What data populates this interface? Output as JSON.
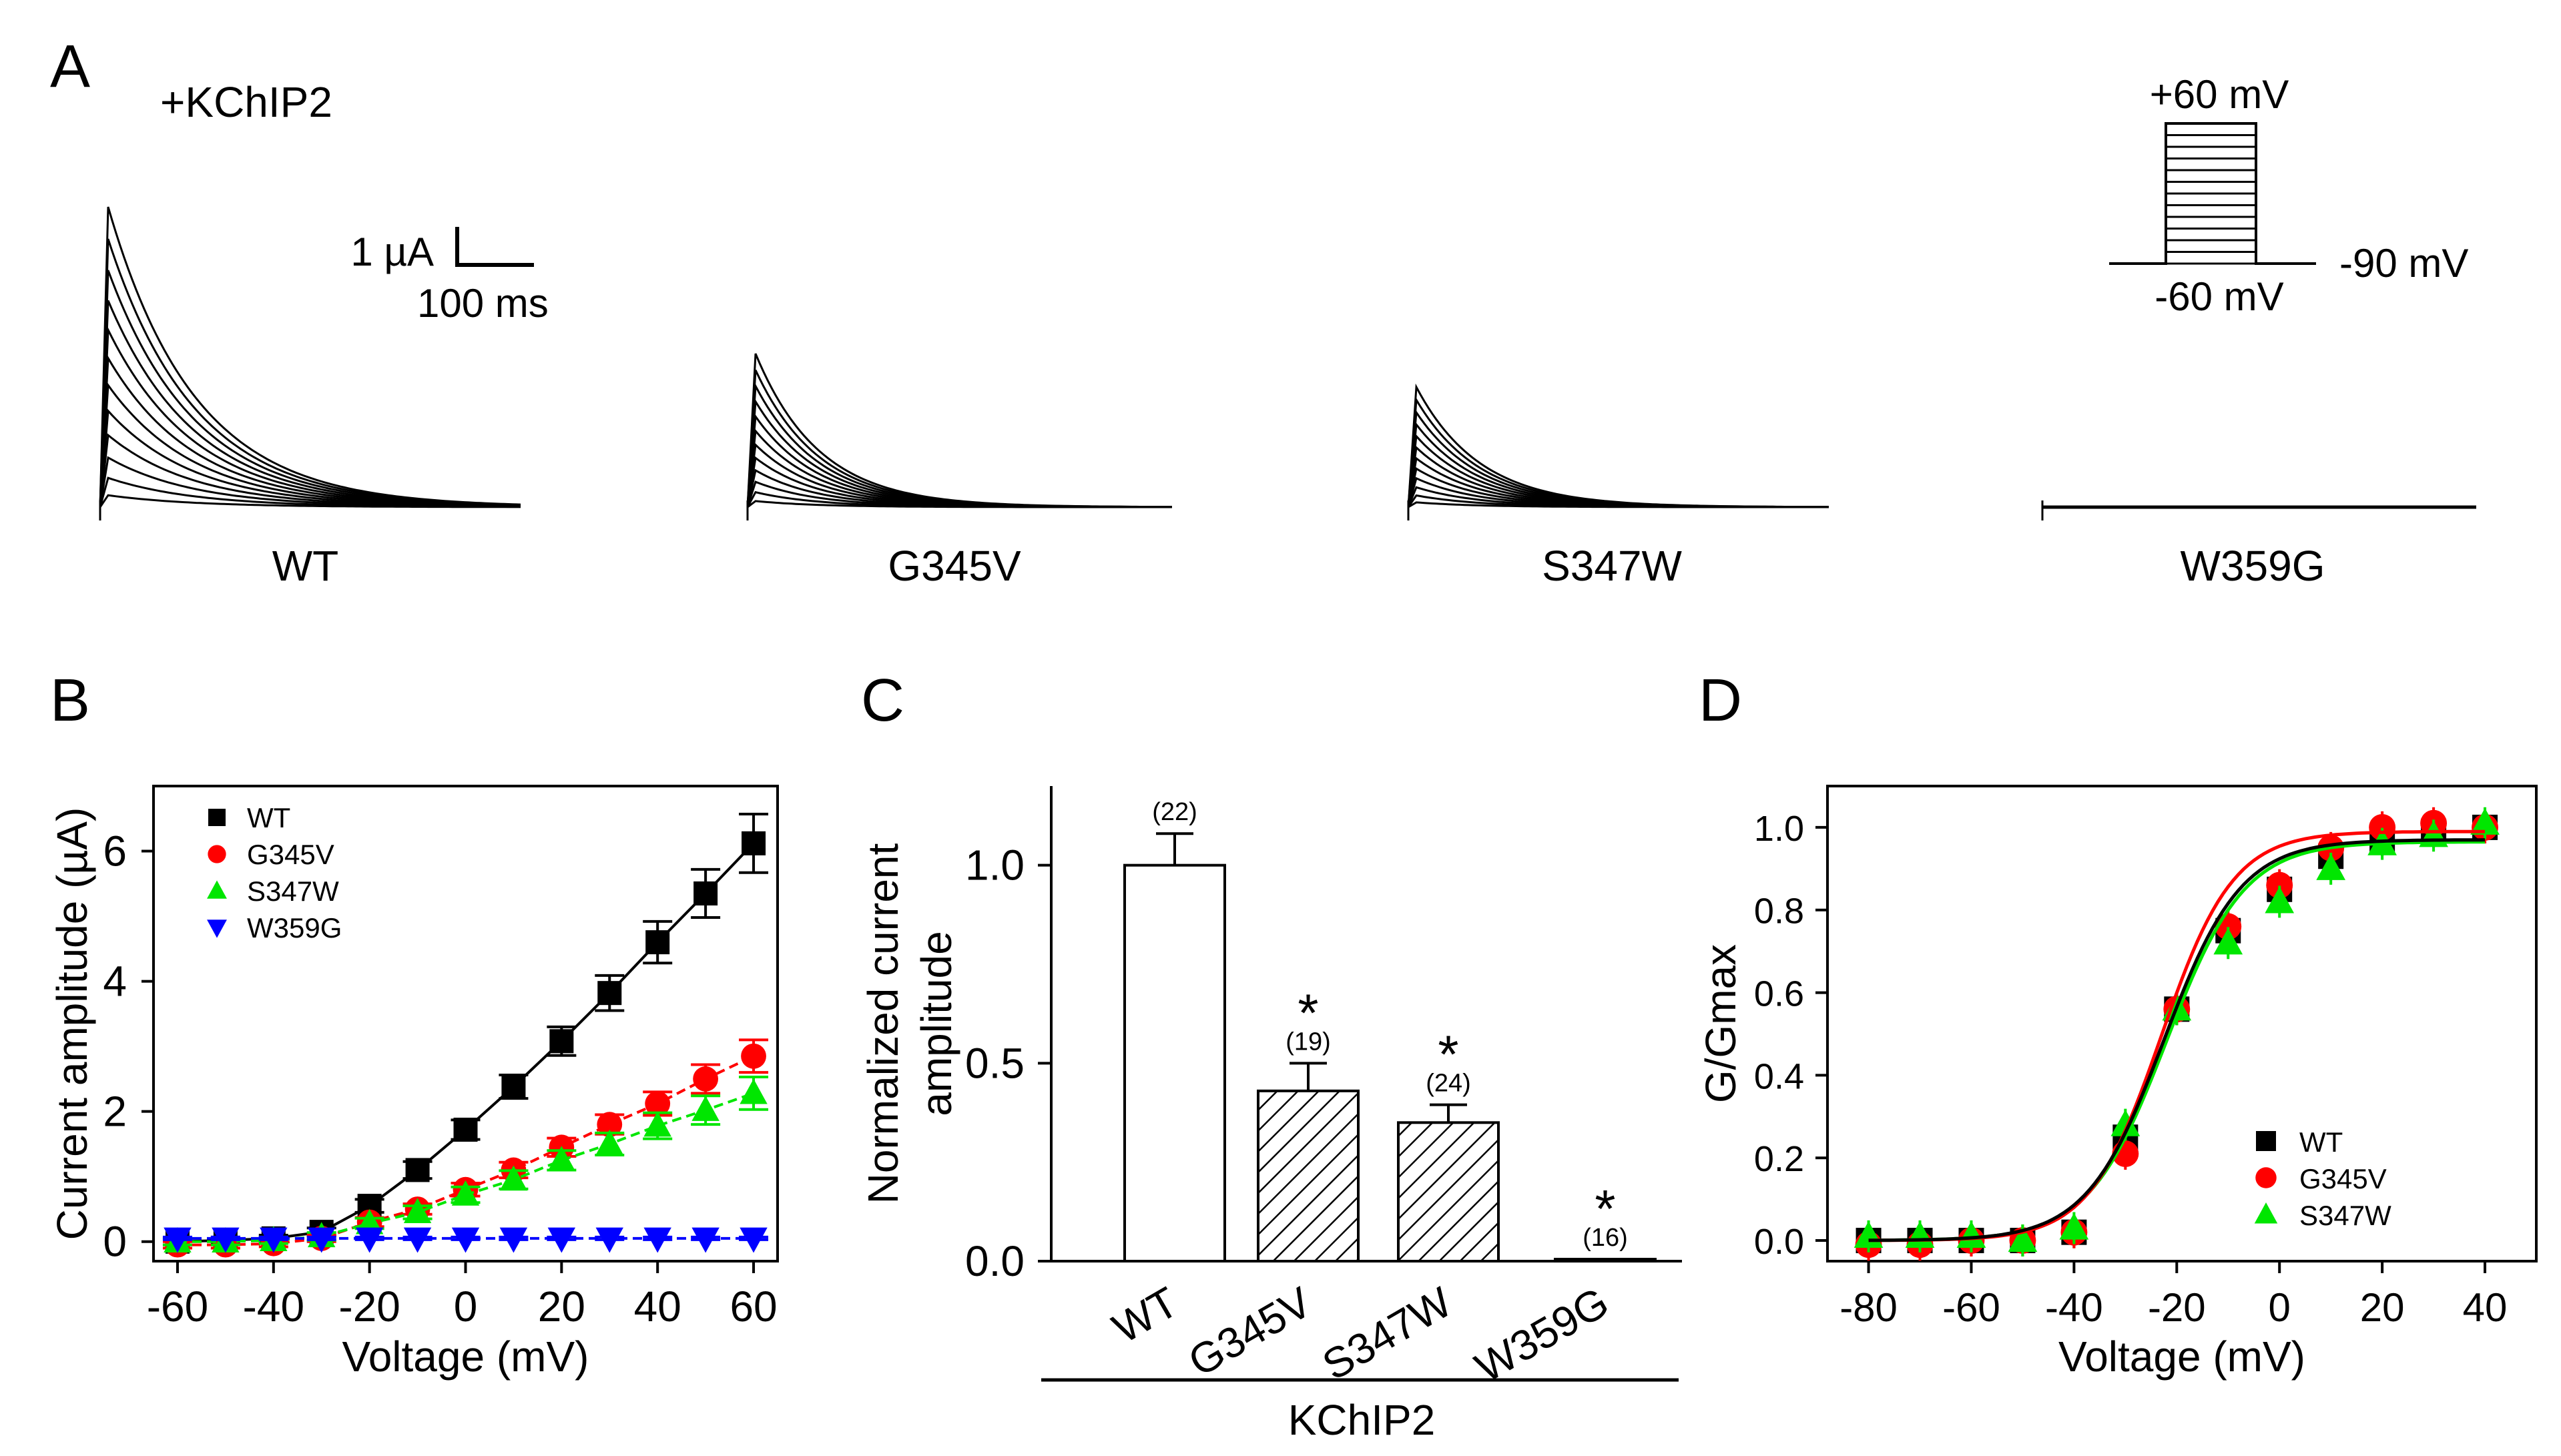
{
  "panel_letters": {
    "a": "A",
    "b": "B",
    "c": "C",
    "d": "D"
  },
  "panel_a": {
    "condition_label": "+KChIP2",
    "scale_bar": {
      "current": "1 µA",
      "time": "100 ms"
    },
    "protocol": {
      "top": "+60 mV",
      "bottom": "-60 mV",
      "holding": "-90 mV",
      "steps": 13
    },
    "traces": [
      {
        "name": "WT",
        "peak_uA": 4.5
      },
      {
        "name": "G345V",
        "peak_uA": 2.3
      },
      {
        "name": "S347W",
        "peak_uA": 1.8
      },
      {
        "name": "W359G",
        "peak_uA": 0.0
      }
    ]
  },
  "colors": {
    "WT": "#000000",
    "G345V": "#ff0000",
    "S347W": "#00e600",
    "W359G": "#0000ff"
  },
  "chart_data": [
    {
      "type": "scatter",
      "panel": "B",
      "title": "",
      "xlabel": "Voltage (mV)",
      "ylabel": "Current amplitude (µA)",
      "xlim": [
        -65,
        65
      ],
      "ylim": [
        -0.3,
        7
      ],
      "xticks": [
        -60,
        -40,
        -20,
        0,
        20,
        40,
        60
      ],
      "yticks": [
        0,
        2,
        4,
        6
      ],
      "legend_position": "top-left",
      "x": [
        -60,
        -50,
        -40,
        -30,
        -20,
        -10,
        0,
        10,
        20,
        30,
        40,
        50,
        60
      ],
      "series": [
        {
          "name": "WT",
          "marker": "square",
          "values": [
            0.0,
            0.02,
            0.05,
            0.15,
            0.55,
            1.1,
            1.72,
            2.38,
            3.08,
            3.82,
            4.6,
            5.35,
            6.12
          ],
          "errors": [
            0.05,
            0.05,
            0.05,
            0.06,
            0.1,
            0.13,
            0.15,
            0.18,
            0.22,
            0.27,
            0.32,
            0.37,
            0.45
          ]
        },
        {
          "name": "G345V",
          "marker": "circle",
          "values": [
            -0.05,
            -0.05,
            -0.03,
            0.05,
            0.3,
            0.5,
            0.8,
            1.1,
            1.45,
            1.8,
            2.12,
            2.5,
            2.85
          ],
          "errors": [
            0.05,
            0.05,
            0.05,
            0.05,
            0.07,
            0.08,
            0.1,
            0.12,
            0.14,
            0.15,
            0.18,
            0.22,
            0.25
          ]
        },
        {
          "name": "S347W",
          "marker": "triangle-up",
          "values": [
            0.0,
            0.0,
            0.02,
            0.08,
            0.28,
            0.45,
            0.72,
            0.95,
            1.25,
            1.5,
            1.78,
            2.02,
            2.28
          ],
          "errors": [
            0.05,
            0.05,
            0.05,
            0.06,
            0.08,
            0.1,
            0.12,
            0.14,
            0.15,
            0.17,
            0.2,
            0.22,
            0.25
          ]
        },
        {
          "name": "W359G",
          "marker": "triangle-down",
          "values": [
            0.05,
            0.05,
            0.05,
            0.05,
            0.05,
            0.05,
            0.05,
            0.05,
            0.05,
            0.05,
            0.05,
            0.05,
            0.05
          ],
          "errors": [
            0.02,
            0.02,
            0.02,
            0.02,
            0.02,
            0.02,
            0.02,
            0.02,
            0.02,
            0.02,
            0.02,
            0.02,
            0.02
          ]
        }
      ]
    },
    {
      "type": "bar",
      "panel": "C",
      "title": "",
      "xlabel": "KChIP2",
      "ylabel": "Normalized current amplitude",
      "ylabel_lines": [
        "Normalized current",
        "amplitude"
      ],
      "ylim": [
        0,
        1.2
      ],
      "yticks": [
        0.0,
        0.5,
        1.0
      ],
      "categories": [
        "WT",
        "G345V",
        "S347W",
        "W359G"
      ],
      "values": [
        1.0,
        0.43,
        0.35,
        0.005
      ],
      "errors": [
        0.08,
        0.07,
        0.045,
        0.0
      ],
      "n_labels": [
        "(22)",
        "(19)",
        "(24)",
        "(16)"
      ],
      "significance": [
        "",
        "*",
        "*",
        "*"
      ],
      "hatched": [
        false,
        true,
        true,
        true
      ]
    },
    {
      "type": "scatter",
      "panel": "D",
      "title": "",
      "xlabel": "Voltage (mV)",
      "ylabel": "G/Gmax",
      "xlim": [
        -88,
        50
      ],
      "ylim": [
        -0.05,
        1.1
      ],
      "xticks": [
        -80,
        -60,
        -40,
        -20,
        0,
        20,
        40
      ],
      "yticks": [
        0.0,
        0.2,
        0.4,
        0.6,
        0.8,
        1.0
      ],
      "legend_position": "bottom-right",
      "x": [
        -80,
        -70,
        -60,
        -50,
        -40,
        -30,
        -20,
        -10,
        0,
        10,
        20,
        30,
        40
      ],
      "series": [
        {
          "name": "WT",
          "marker": "square",
          "values": [
            0.0,
            0.0,
            0.0,
            0.0,
            0.02,
            0.25,
            0.56,
            0.75,
            0.85,
            0.93,
            0.97,
            0.99,
            1.0
          ],
          "fit": {
            "v_half": -22.5,
            "slope": 7.5,
            "max": 0.97
          }
        },
        {
          "name": "G345V",
          "marker": "circle",
          "values": [
            -0.01,
            -0.01,
            0.0,
            0.0,
            0.02,
            0.21,
            0.56,
            0.76,
            0.86,
            0.95,
            1.0,
            1.01,
            1.0
          ],
          "fit": {
            "v_half": -23.0,
            "slope": 7.0,
            "max": 0.99
          }
        },
        {
          "name": "S347W",
          "marker": "triangle-up",
          "values": [
            0.01,
            0.01,
            0.01,
            0.0,
            0.03,
            0.28,
            0.56,
            0.72,
            0.82,
            0.9,
            0.96,
            0.98,
            1.01
          ],
          "fit": {
            "v_half": -22.0,
            "slope": 7.6,
            "max": 0.965
          }
        }
      ]
    }
  ]
}
